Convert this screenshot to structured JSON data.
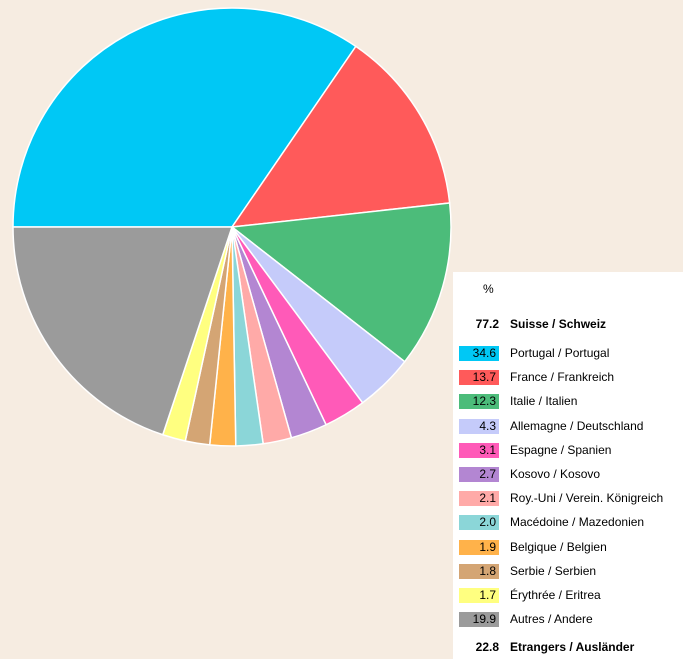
{
  "chart_data": {
    "type": "pie",
    "unit": "%",
    "summary_top": {
      "value": "77.2",
      "label": "Suisse / Schweiz"
    },
    "summary_bottom": {
      "value": "22.8",
      "label": "Etrangers / Ausländer"
    },
    "slices": [
      {
        "label": "Portugal / Portugal",
        "value": 34.6,
        "display": "34.6",
        "color": "#00c8f5"
      },
      {
        "label": "France / Frankreich",
        "value": 13.7,
        "display": "13.7",
        "color": "#ff5a5a"
      },
      {
        "label": "Italie / Italien",
        "value": 12.3,
        "display": "12.3",
        "color": "#4cbc7a"
      },
      {
        "label": "Allemagne / Deutschland",
        "value": 4.3,
        "display": "4.3",
        "color": "#c5cbfa"
      },
      {
        "label": "Espagne / Spanien",
        "value": 3.1,
        "display": "3.1",
        "color": "#ff5ab8"
      },
      {
        "label": "Kosovo / Kosovo",
        "value": 2.7,
        "display": "2.7",
        "color": "#b386d2"
      },
      {
        "label": "Roy.-Uni / Verein. Königreich",
        "value": 2.1,
        "display": "2.1",
        "color": "#ffaaa8"
      },
      {
        "label": "Macédoine / Mazedonien",
        "value": 2.0,
        "display": "2.0",
        "color": "#8bd6d8"
      },
      {
        "label": "Belgique / Belgien",
        "value": 1.9,
        "display": "1.9",
        "color": "#ffb24a"
      },
      {
        "label": "Serbie / Serbien",
        "value": 1.8,
        "display": "1.8",
        "color": "#d4a574"
      },
      {
        "label": "Érythrée / Eritrea",
        "value": 1.7,
        "display": "1.7",
        "color": "#ffff80"
      },
      {
        "label": "Autres / Andere",
        "value": 19.9,
        "display": "19.9",
        "color": "#9b9b9b"
      }
    ]
  }
}
